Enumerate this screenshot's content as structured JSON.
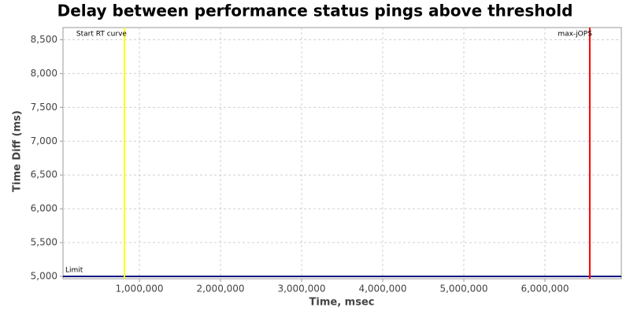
{
  "chart_data": {
    "type": "line",
    "title": "Delay between performance status pings above threshold",
    "x_label": "Time, msec",
    "y_label": "Time Diff (ms)",
    "xlim": [
      58000,
      6942000
    ],
    "ylim": [
      4965,
      8680
    ],
    "xticks": [
      {
        "value": 1000000,
        "label": "1,000,000"
      },
      {
        "value": 2000000,
        "label": "2,000,000"
      },
      {
        "value": 3000000,
        "label": "3,000,000"
      },
      {
        "value": 4000000,
        "label": "4,000,000"
      },
      {
        "value": 5000000,
        "label": "5,000,000"
      },
      {
        "value": 6000000,
        "label": "6,000,000"
      }
    ],
    "yticks": [
      {
        "value": 5000,
        "label": "5,000"
      },
      {
        "value": 5500,
        "label": "5,500"
      },
      {
        "value": 6000,
        "label": "6,000"
      },
      {
        "value": 6500,
        "label": "6,500"
      },
      {
        "value": 7000,
        "label": "7,000"
      },
      {
        "value": 7500,
        "label": "7,500"
      },
      {
        "value": 8000,
        "label": "8,000"
      },
      {
        "value": 8500,
        "label": "8,500"
      }
    ],
    "grid": true,
    "vertical_markers": [
      {
        "label": "Start RT curve",
        "x": 815000,
        "color": "#ffff00"
      },
      {
        "label": "max-jOPS",
        "x": 6553000,
        "color": "#ff0000"
      }
    ],
    "horizontal_markers": [
      {
        "label": "Limit",
        "y": 5000,
        "color": "#000080"
      }
    ]
  }
}
